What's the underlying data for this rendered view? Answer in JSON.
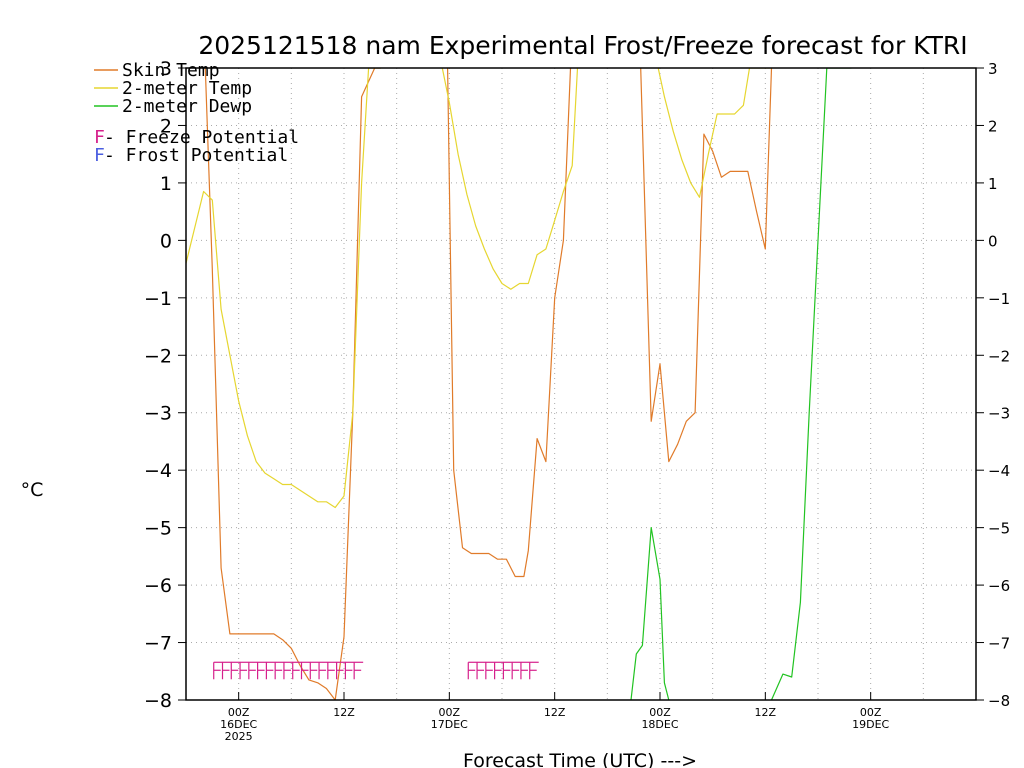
{
  "chart_data": {
    "type": "line",
    "title": "2025121518 nam Experimental Frost/Freeze forecast for KTRI",
    "xlabel": "Forecast Time (UTC) --->",
    "ylabel": "°C",
    "ylim": [
      -8,
      3
    ],
    "xlim": [
      18,
      108
    ],
    "grid": true,
    "y_ticks": [
      "3",
      "2",
      "1",
      "0",
      "−1",
      "−2",
      "−3",
      "−4",
      "−5",
      "−6",
      "−7",
      "−8"
    ],
    "x_ticks": [
      {
        "hour": 24,
        "lines": [
          "00Z",
          "16DEC",
          "2025"
        ]
      },
      {
        "hour": 36,
        "lines": [
          "12Z"
        ]
      },
      {
        "hour": 48,
        "lines": [
          "00Z",
          "17DEC"
        ]
      },
      {
        "hour": 60,
        "lines": [
          "12Z"
        ]
      },
      {
        "hour": 72,
        "lines": [
          "00Z",
          "18DEC"
        ]
      },
      {
        "hour": 84,
        "lines": [
          "12Z"
        ]
      },
      {
        "hour": 96,
        "lines": [
          "00Z",
          "19DEC"
        ]
      }
    ],
    "legend": {
      "position": "top-left",
      "entries": [
        {
          "label": "Skin Temp",
          "color": "#e07b2a"
        },
        {
          "label": "2-meter Temp",
          "color": "#e6d630"
        },
        {
          "label": "2-meter Dewp",
          "color": "#22c322"
        }
      ],
      "potentials": [
        {
          "symbol": "F",
          "label": " - Freeze Potential",
          "color": "#d6208c"
        },
        {
          "symbol": "F",
          "label": " - Frost Potential",
          "color": "#4a5ee0"
        }
      ]
    },
    "series": [
      {
        "name": "Skin Temp",
        "color": "#e07b2a",
        "x": [
          20.2,
          21.0,
          22.0,
          23.0,
          24.0,
          25.0,
          26.0,
          27.0,
          28.0,
          29.0,
          30.0,
          31.0,
          32.0,
          33.0,
          34.0,
          35.0,
          36.0,
          37.0,
          38.0,
          39.5,
          40.2
        ],
        "y": [
          3.0,
          -0.5,
          -5.7,
          -6.85,
          -6.85,
          -6.85,
          -6.85,
          -6.85,
          -6.85,
          -6.95,
          -7.1,
          -7.4,
          -7.65,
          -7.7,
          -7.8,
          -8.0,
          -6.9,
          -3.0,
          2.5,
          3.0,
          3.0
        ]
      },
      {
        "name": "Skin Temp",
        "color": "#e07b2a",
        "x": [
          47.8,
          48.5,
          49.5,
          50.5,
          51.5,
          52.5,
          53.5,
          54.5,
          55.5,
          56.5,
          57.0,
          58.0,
          59.0,
          60.0,
          61.0,
          61.8
        ],
        "y": [
          3.0,
          -4.0,
          -5.35,
          -5.45,
          -5.45,
          -5.45,
          -5.55,
          -5.55,
          -5.85,
          -5.85,
          -5.4,
          -3.45,
          -3.85,
          -1.0,
          0.0,
          3.0
        ]
      },
      {
        "name": "Skin Temp",
        "color": "#e07b2a",
        "x": [
          69.8,
          71.0,
          72.0,
          73.0,
          74.0,
          75.0,
          76.0,
          77.0,
          78.0,
          79.0,
          80.0,
          81.0,
          82.0,
          83.0,
          84.0,
          84.7
        ],
        "y": [
          3.0,
          -3.15,
          -2.15,
          -3.85,
          -3.55,
          -3.15,
          -3.0,
          1.85,
          1.55,
          1.1,
          1.2,
          1.2,
          1.2,
          0.5,
          -0.15,
          3.0
        ]
      },
      {
        "name": "2-meter Temp",
        "color": "#e6d630",
        "x": [
          18.0,
          20.0,
          21.0,
          22.0,
          23.0,
          24.0,
          25.0,
          26.0,
          27.0,
          28.0,
          29.0,
          30.0,
          31.0,
          32.0,
          33.0,
          34.0,
          35.0,
          36.0,
          37.0,
          38.0,
          38.8,
          40.2
        ],
        "y": [
          -0.4,
          0.85,
          0.7,
          -1.2,
          -2.0,
          -2.8,
          -3.4,
          -3.85,
          -4.05,
          -4.15,
          -4.25,
          -4.25,
          -4.35,
          -4.45,
          -4.55,
          -4.55,
          -4.65,
          -4.45,
          -3.0,
          1.0,
          3.0,
          3.0
        ]
      },
      {
        "name": "2-meter Temp",
        "color": "#e6d630",
        "x": [
          47.2,
          48.0,
          49.0,
          50.0,
          51.0,
          52.0,
          53.0,
          54.0,
          55.0,
          56.0,
          57.0,
          58.0,
          59.0,
          60.0,
          61.0,
          62.0,
          62.6
        ],
        "y": [
          3.0,
          2.4,
          1.5,
          0.8,
          0.25,
          -0.15,
          -0.5,
          -0.75,
          -0.85,
          -0.75,
          -0.75,
          -0.25,
          -0.15,
          0.35,
          0.85,
          1.3,
          3.0
        ]
      },
      {
        "name": "2-meter Temp",
        "color": "#e6d630",
        "x": [
          71.8,
          72.5,
          73.5,
          74.5,
          75.5,
          76.5,
          77.5,
          78.5,
          79.5,
          80.5,
          81.5,
          82.2,
          83.0,
          84.7
        ],
        "y": [
          3.0,
          2.5,
          1.9,
          1.4,
          1.0,
          0.75,
          1.5,
          2.2,
          2.2,
          2.2,
          2.35,
          3.0,
          3.0,
          3.0
        ]
      },
      {
        "name": "2-meter Dewp",
        "color": "#22c322",
        "x": [
          68.7,
          69.3,
          70.0,
          71.0,
          72.0,
          72.5,
          73.0
        ],
        "y": [
          -8.0,
          -7.2,
          -7.05,
          -5.0,
          -5.9,
          -7.7,
          -8.0
        ]
      },
      {
        "name": "2-meter Dewp",
        "color": "#22c322",
        "x": [
          84.7,
          86.0,
          87.0,
          88.0,
          89.0,
          90.0,
          91.0,
          92.0,
          93.0,
          93.8
        ],
        "y": [
          -8.0,
          -7.55,
          -7.6,
          -6.3,
          -3.0,
          0.0,
          3.0,
          3.0,
          3.0,
          3.0
        ]
      }
    ],
    "freeze_potential": {
      "symbol": "F",
      "color": "#d6208c",
      "value": -7.5,
      "x": [
        21.5,
        22.5,
        23.5,
        24.5,
        25.5,
        26.5,
        27.5,
        28.5,
        29.5,
        30.5,
        31.5,
        32.5,
        33.5,
        34.5,
        35.5,
        36.5,
        37.5,
        50.5,
        51.5,
        52.5,
        53.5,
        54.5,
        55.5,
        56.5,
        57.5
      ]
    }
  }
}
